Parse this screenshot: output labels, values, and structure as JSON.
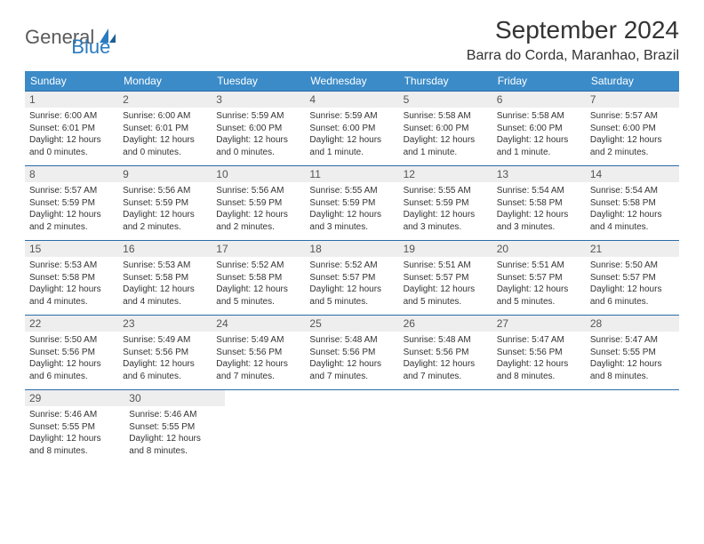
{
  "logo": {
    "part1": "General",
    "part2": "Blue"
  },
  "title": "September 2024",
  "location": "Barra do Corda, Maranhao, Brazil",
  "colors": {
    "header_bg": "#3b8bc8",
    "header_text": "#ffffff",
    "week_border": "#2a6ca8",
    "daynum_bg": "#eeeeee",
    "logo_blue": "#2a7bbf",
    "logo_gray": "#5a5a5a"
  },
  "weekdays": [
    "Sunday",
    "Monday",
    "Tuesday",
    "Wednesday",
    "Thursday",
    "Friday",
    "Saturday"
  ],
  "weeks": [
    [
      {
        "n": "1",
        "sr": "Sunrise: 6:00 AM",
        "ss": "Sunset: 6:01 PM",
        "d1": "Daylight: 12 hours",
        "d2": "and 0 minutes."
      },
      {
        "n": "2",
        "sr": "Sunrise: 6:00 AM",
        "ss": "Sunset: 6:01 PM",
        "d1": "Daylight: 12 hours",
        "d2": "and 0 minutes."
      },
      {
        "n": "3",
        "sr": "Sunrise: 5:59 AM",
        "ss": "Sunset: 6:00 PM",
        "d1": "Daylight: 12 hours",
        "d2": "and 0 minutes."
      },
      {
        "n": "4",
        "sr": "Sunrise: 5:59 AM",
        "ss": "Sunset: 6:00 PM",
        "d1": "Daylight: 12 hours",
        "d2": "and 1 minute."
      },
      {
        "n": "5",
        "sr": "Sunrise: 5:58 AM",
        "ss": "Sunset: 6:00 PM",
        "d1": "Daylight: 12 hours",
        "d2": "and 1 minute."
      },
      {
        "n": "6",
        "sr": "Sunrise: 5:58 AM",
        "ss": "Sunset: 6:00 PM",
        "d1": "Daylight: 12 hours",
        "d2": "and 1 minute."
      },
      {
        "n": "7",
        "sr": "Sunrise: 5:57 AM",
        "ss": "Sunset: 6:00 PM",
        "d1": "Daylight: 12 hours",
        "d2": "and 2 minutes."
      }
    ],
    [
      {
        "n": "8",
        "sr": "Sunrise: 5:57 AM",
        "ss": "Sunset: 5:59 PM",
        "d1": "Daylight: 12 hours",
        "d2": "and 2 minutes."
      },
      {
        "n": "9",
        "sr": "Sunrise: 5:56 AM",
        "ss": "Sunset: 5:59 PM",
        "d1": "Daylight: 12 hours",
        "d2": "and 2 minutes."
      },
      {
        "n": "10",
        "sr": "Sunrise: 5:56 AM",
        "ss": "Sunset: 5:59 PM",
        "d1": "Daylight: 12 hours",
        "d2": "and 2 minutes."
      },
      {
        "n": "11",
        "sr": "Sunrise: 5:55 AM",
        "ss": "Sunset: 5:59 PM",
        "d1": "Daylight: 12 hours",
        "d2": "and 3 minutes."
      },
      {
        "n": "12",
        "sr": "Sunrise: 5:55 AM",
        "ss": "Sunset: 5:59 PM",
        "d1": "Daylight: 12 hours",
        "d2": "and 3 minutes."
      },
      {
        "n": "13",
        "sr": "Sunrise: 5:54 AM",
        "ss": "Sunset: 5:58 PM",
        "d1": "Daylight: 12 hours",
        "d2": "and 3 minutes."
      },
      {
        "n": "14",
        "sr": "Sunrise: 5:54 AM",
        "ss": "Sunset: 5:58 PM",
        "d1": "Daylight: 12 hours",
        "d2": "and 4 minutes."
      }
    ],
    [
      {
        "n": "15",
        "sr": "Sunrise: 5:53 AM",
        "ss": "Sunset: 5:58 PM",
        "d1": "Daylight: 12 hours",
        "d2": "and 4 minutes."
      },
      {
        "n": "16",
        "sr": "Sunrise: 5:53 AM",
        "ss": "Sunset: 5:58 PM",
        "d1": "Daylight: 12 hours",
        "d2": "and 4 minutes."
      },
      {
        "n": "17",
        "sr": "Sunrise: 5:52 AM",
        "ss": "Sunset: 5:58 PM",
        "d1": "Daylight: 12 hours",
        "d2": "and 5 minutes."
      },
      {
        "n": "18",
        "sr": "Sunrise: 5:52 AM",
        "ss": "Sunset: 5:57 PM",
        "d1": "Daylight: 12 hours",
        "d2": "and 5 minutes."
      },
      {
        "n": "19",
        "sr": "Sunrise: 5:51 AM",
        "ss": "Sunset: 5:57 PM",
        "d1": "Daylight: 12 hours",
        "d2": "and 5 minutes."
      },
      {
        "n": "20",
        "sr": "Sunrise: 5:51 AM",
        "ss": "Sunset: 5:57 PM",
        "d1": "Daylight: 12 hours",
        "d2": "and 5 minutes."
      },
      {
        "n": "21",
        "sr": "Sunrise: 5:50 AM",
        "ss": "Sunset: 5:57 PM",
        "d1": "Daylight: 12 hours",
        "d2": "and 6 minutes."
      }
    ],
    [
      {
        "n": "22",
        "sr": "Sunrise: 5:50 AM",
        "ss": "Sunset: 5:56 PM",
        "d1": "Daylight: 12 hours",
        "d2": "and 6 minutes."
      },
      {
        "n": "23",
        "sr": "Sunrise: 5:49 AM",
        "ss": "Sunset: 5:56 PM",
        "d1": "Daylight: 12 hours",
        "d2": "and 6 minutes."
      },
      {
        "n": "24",
        "sr": "Sunrise: 5:49 AM",
        "ss": "Sunset: 5:56 PM",
        "d1": "Daylight: 12 hours",
        "d2": "and 7 minutes."
      },
      {
        "n": "25",
        "sr": "Sunrise: 5:48 AM",
        "ss": "Sunset: 5:56 PM",
        "d1": "Daylight: 12 hours",
        "d2": "and 7 minutes."
      },
      {
        "n": "26",
        "sr": "Sunrise: 5:48 AM",
        "ss": "Sunset: 5:56 PM",
        "d1": "Daylight: 12 hours",
        "d2": "and 7 minutes."
      },
      {
        "n": "27",
        "sr": "Sunrise: 5:47 AM",
        "ss": "Sunset: 5:56 PM",
        "d1": "Daylight: 12 hours",
        "d2": "and 8 minutes."
      },
      {
        "n": "28",
        "sr": "Sunrise: 5:47 AM",
        "ss": "Sunset: 5:55 PM",
        "d1": "Daylight: 12 hours",
        "d2": "and 8 minutes."
      }
    ],
    [
      {
        "n": "29",
        "sr": "Sunrise: 5:46 AM",
        "ss": "Sunset: 5:55 PM",
        "d1": "Daylight: 12 hours",
        "d2": "and 8 minutes."
      },
      {
        "n": "30",
        "sr": "Sunrise: 5:46 AM",
        "ss": "Sunset: 5:55 PM",
        "d1": "Daylight: 12 hours",
        "d2": "and 8 minutes."
      },
      null,
      null,
      null,
      null,
      null
    ]
  ]
}
